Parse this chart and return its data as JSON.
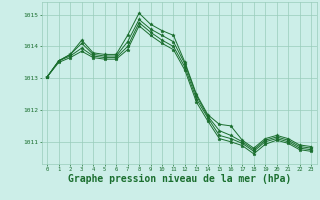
{
  "background_color": "#cceee8",
  "grid_color": "#99ccbb",
  "line_color": "#1a6e2e",
  "marker": "*",
  "xlabel": "Graphe pression niveau de la mer (hPa)",
  "xlabel_fontsize": 7,
  "yticks": [
    1011,
    1012,
    1013,
    1014,
    1015
  ],
  "xticks": [
    0,
    1,
    2,
    3,
    4,
    5,
    6,
    7,
    8,
    9,
    10,
    11,
    12,
    13,
    14,
    15,
    16,
    17,
    18,
    19,
    20,
    21,
    22,
    23
  ],
  "ylim": [
    1010.3,
    1015.4
  ],
  "xlim": [
    -0.5,
    23.5
  ],
  "series": [
    [
      1013.05,
      1013.55,
      1013.75,
      1014.2,
      1013.8,
      1013.75,
      1013.75,
      1014.35,
      1015.05,
      1014.7,
      1014.5,
      1014.35,
      1013.5,
      1012.5,
      1011.85,
      1011.55,
      1011.5,
      1011.05,
      1010.8,
      1011.1,
      1011.2,
      1011.1,
      1010.9,
      1010.85
    ],
    [
      1013.05,
      1013.55,
      1013.75,
      1014.1,
      1013.75,
      1013.7,
      1013.7,
      1014.15,
      1014.85,
      1014.55,
      1014.35,
      1014.15,
      1013.45,
      1012.45,
      1011.8,
      1011.35,
      1011.2,
      1011.0,
      1010.75,
      1011.05,
      1011.15,
      1011.05,
      1010.85,
      1010.8
    ],
    [
      1013.05,
      1013.55,
      1013.7,
      1013.95,
      1013.7,
      1013.65,
      1013.65,
      1014.0,
      1014.75,
      1014.45,
      1014.2,
      1014.0,
      1013.35,
      1012.35,
      1011.75,
      1011.2,
      1011.1,
      1010.95,
      1010.7,
      1011.0,
      1011.1,
      1011.0,
      1010.8,
      1010.75
    ],
    [
      1013.05,
      1013.5,
      1013.65,
      1013.85,
      1013.65,
      1013.6,
      1013.6,
      1013.9,
      1014.65,
      1014.35,
      1014.1,
      1013.9,
      1013.25,
      1012.25,
      1011.65,
      1011.1,
      1011.0,
      1010.88,
      1010.62,
      1010.92,
      1011.05,
      1010.95,
      1010.75,
      1010.7
    ]
  ]
}
